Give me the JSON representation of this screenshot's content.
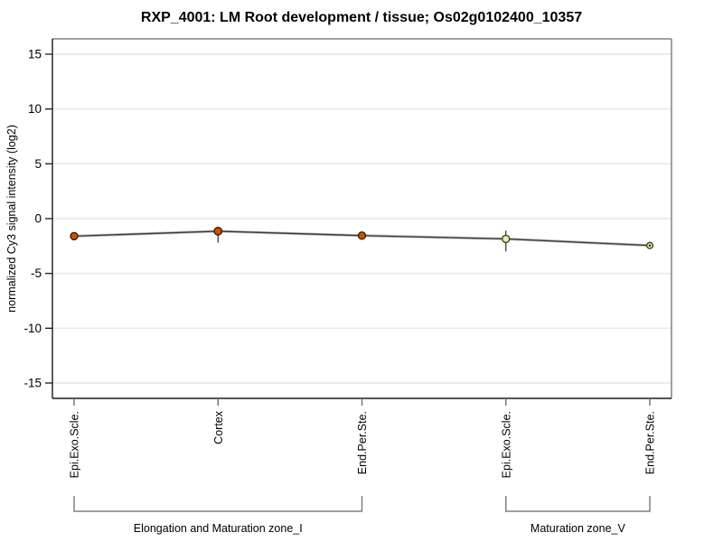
{
  "chart_data": {
    "type": "line",
    "title": "RXP_4001: LM Root development / tissue; Os02g0102400_10357",
    "ylabel": "normalized Cy3 signal intensity (log2)",
    "xlabel": "",
    "ylim": [
      -16.4,
      16.4
    ],
    "yticks": [
      15,
      10,
      5,
      0,
      -5,
      -10,
      -15
    ],
    "grid": "horizontal",
    "legend_position": "none",
    "categories": [
      "Epi.Exo.Scle.",
      "Cortex",
      "End.Per.Ste.",
      "Epi.Exo.Scle.",
      "End.Per.Ste."
    ],
    "series": [
      {
        "name": "normalized Cy3 signal intensity",
        "values": [
          -1.6,
          -1.15,
          -1.55,
          -1.85,
          -2.45
        ]
      }
    ],
    "points": [
      {
        "label": "Epi.Exo.Scle.",
        "value": -1.6,
        "err_low": -1.95,
        "err_high": -1.3,
        "fill": "#cc5200",
        "stroke": "#3a1f00",
        "radius": 4,
        "center_dot": false
      },
      {
        "label": "Cortex",
        "value": -1.15,
        "err_low": -2.2,
        "err_high": -0.85,
        "fill": "#cc5200",
        "stroke": "#3a1f00",
        "radius": 4.2,
        "center_dot": false
      },
      {
        "label": "End.Per.Ste.",
        "value": -1.55,
        "err_low": -1.85,
        "err_high": -1.3,
        "fill": "#cc5200",
        "stroke": "#3a1f00",
        "radius": 4,
        "center_dot": false
      },
      {
        "label": "Epi.Exo.Scle.",
        "value": -1.85,
        "err_low": -3.0,
        "err_high": -1.1,
        "fill": "#eeeeaa",
        "stroke": "#45451c",
        "radius": 4,
        "center_dot": false
      },
      {
        "label": "End.Per.Ste.",
        "value": -2.45,
        "err_low": null,
        "err_high": null,
        "fill": "#eeeeaa",
        "stroke": "#45451c",
        "radius": 3.4,
        "center_dot": true
      }
    ],
    "groups": [
      {
        "label": "Elongation and Maturation zone_I",
        "start": 0,
        "end": 2
      },
      {
        "label": "Maturation zone_V",
        "start": 3,
        "end": 4
      }
    ],
    "colors": {
      "line": "#3d3d3d",
      "line_halo": "#b5b5b5",
      "grid": "#e6e6e6",
      "axis": "#1a1a1a",
      "box_top_right": "#828282",
      "x_tick": "#6e6e6e",
      "error_bar": "#2b2b2b",
      "bracket": "#808080",
      "text": "#000000",
      "background": "#ffffff"
    }
  }
}
